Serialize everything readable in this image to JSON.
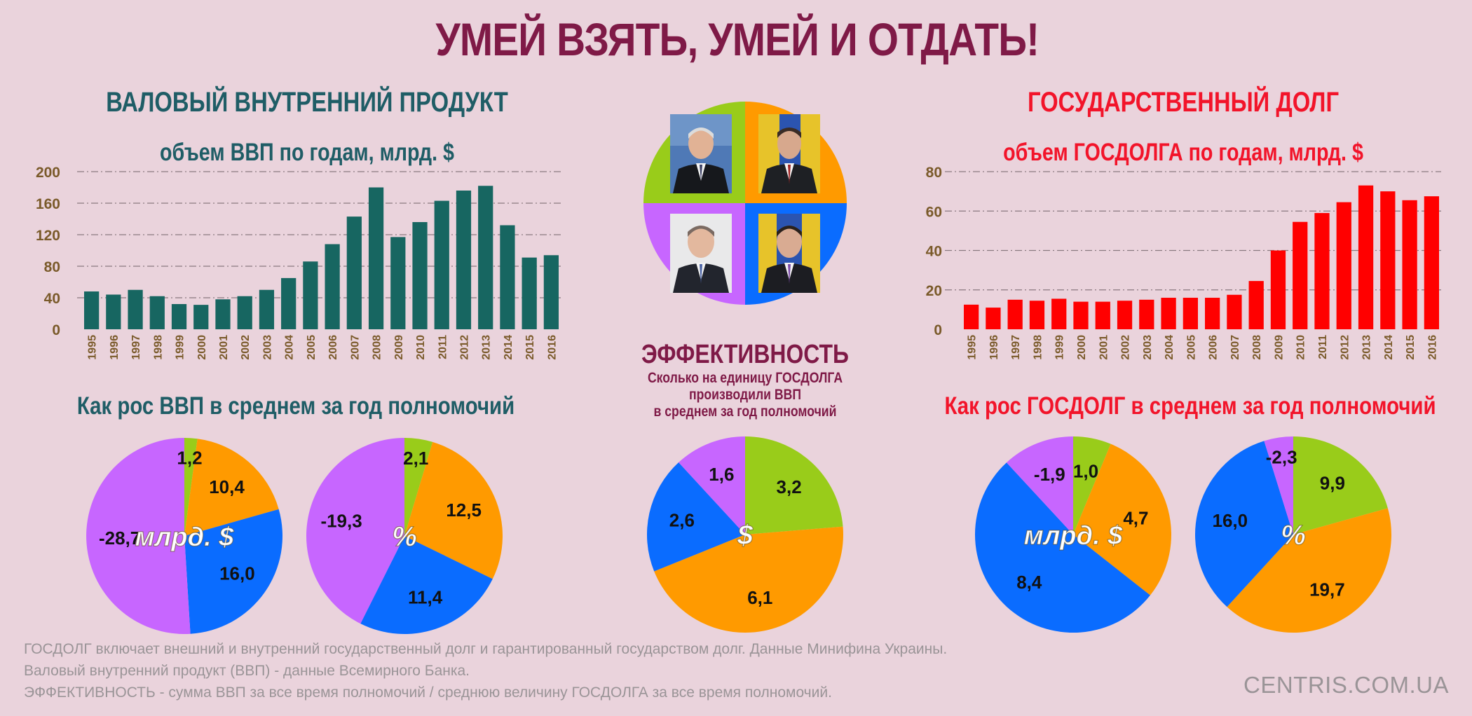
{
  "title": "УМЕЙ ВЗЯТЬ, УМЕЙ И ОТДАТЬ!",
  "gdp_section": {
    "heading": "ВАЛОВЫЙ ВНУТРЕННИЙ ПРОДУКТ",
    "subtitle": "объем ВВП по годам, млрд. $",
    "pies_heading": "Как рос ВВП в среднем за год полномочий"
  },
  "debt_section": {
    "heading": "ГОСУДАРСТВЕННЫЙ ДОЛГ",
    "subtitle": "объем ГОСДОЛГА по годам, млрд. $",
    "pies_heading": "Как рос ГОСДОЛГ в среднем за год полномочий"
  },
  "efficiency": {
    "title": "ЭФФЕКТИВНОСТЬ",
    "line1": "Сколько на единицу ГОСДОЛГА",
    "line2": "производили ВВП",
    "line3": "в среднем за год полномочий"
  },
  "footnotes": [
    "ГОСДОЛГ включает внешний и внутренний государственный долг и гарантированный государством долг. Данные Минифина Украины.",
    "Валовый внутренний продукт (ВВП) - данные Всемирного Банка.",
    "ЭФФЕКТИВНОСТЬ - сумма ВВП за все время полномочий / среднюю величину ГОСДОЛГА за все время полномочий."
  ],
  "brand": "CENTRIS.COM.UA",
  "colors": {
    "background": "#ead3dc",
    "title": "#7f1a47",
    "gdp_text": "#1f5d66",
    "gdp_bar": "#176661",
    "debt_text": "#f2142a",
    "debt_bar": "#ff0000",
    "tick_label": "#7a5a2a",
    "pie_green": "#99cc1a",
    "pie_orange": "#ff9a00",
    "pie_blue": "#0a6cff",
    "pie_violet": "#c766ff"
  },
  "portraits": {
    "icons": [
      "portrait-top-left-icon",
      "portrait-top-right-icon",
      "portrait-bottom-left-icon",
      "portrait-bottom-right-icon"
    ]
  },
  "chart_data": [
    {
      "id": "gdp_bars",
      "type": "bar",
      "categories": [
        "1995",
        "1996",
        "1997",
        "1998",
        "1999",
        "2000",
        "2001",
        "2002",
        "2003",
        "2004",
        "2005",
        "2006",
        "2007",
        "2008",
        "2009",
        "2010",
        "2011",
        "2012",
        "2013",
        "2014",
        "2015",
        "2016"
      ],
      "values": [
        48,
        44,
        50,
        42,
        32,
        31,
        38,
        42,
        50,
        65,
        86,
        108,
        143,
        180,
        117,
        136,
        163,
        176,
        182,
        132,
        91,
        94
      ],
      "title": "объем ВВП по годам, млрд. $",
      "ylim": [
        0,
        200
      ],
      "yticks": [
        0,
        40,
        80,
        120,
        160,
        200
      ],
      "grid": true
    },
    {
      "id": "debt_bars",
      "type": "bar",
      "categories": [
        "1995",
        "1996",
        "1997",
        "1998",
        "1999",
        "2000",
        "2001",
        "2002",
        "2003",
        "2004",
        "2005",
        "2006",
        "2007",
        "2008",
        "2009",
        "2010",
        "2011",
        "2012",
        "2013",
        "2014",
        "2015",
        "2016"
      ],
      "values": [
        12.5,
        11,
        15,
        14.5,
        15.5,
        14,
        14,
        14.5,
        15,
        16,
        16,
        16,
        17.5,
        24.5,
        40,
        54.5,
        59,
        64.5,
        73,
        70,
        65.5,
        67.5
      ],
      "title": "объем ГОСДОЛГА по годам, млрд. $",
      "ylim": [
        0,
        80
      ],
      "yticks": [
        0,
        20,
        40,
        60,
        80
      ],
      "grid": true
    },
    {
      "id": "gdp_pie_bln",
      "type": "pie",
      "center_label": "млрд. $",
      "slices": [
        {
          "label": "1,2",
          "value": 1.2,
          "color": "#99cc1a"
        },
        {
          "label": "10,4",
          "value": 10.4,
          "color": "#ff9a00"
        },
        {
          "label": "16,0",
          "value": 16.0,
          "color": "#0a6cff"
        },
        {
          "label": "-28,7",
          "value": -28.7,
          "color": "#c766ff"
        }
      ]
    },
    {
      "id": "gdp_pie_pct",
      "type": "pie",
      "center_label": "%",
      "slices": [
        {
          "label": "2,1",
          "value": 2.1,
          "color": "#99cc1a"
        },
        {
          "label": "12,5",
          "value": 12.5,
          "color": "#ff9a00"
        },
        {
          "label": "11,4",
          "value": 11.4,
          "color": "#0a6cff"
        },
        {
          "label": "-19,3",
          "value": -19.3,
          "color": "#c766ff"
        }
      ]
    },
    {
      "id": "efficiency_pie",
      "type": "pie",
      "center_label": "$",
      "slices": [
        {
          "label": "3,2",
          "value": 3.2,
          "color": "#99cc1a"
        },
        {
          "label": "6,1",
          "value": 6.1,
          "color": "#ff9a00"
        },
        {
          "label": "2,6",
          "value": 2.6,
          "color": "#0a6cff"
        },
        {
          "label": "1,6",
          "value": 1.6,
          "color": "#c766ff"
        }
      ]
    },
    {
      "id": "debt_pie_bln",
      "type": "pie",
      "center_label": "млрд. $",
      "slices": [
        {
          "label": "1,0",
          "value": 1.0,
          "color": "#99cc1a"
        },
        {
          "label": "4,7",
          "value": 4.7,
          "color": "#ff9a00"
        },
        {
          "label": "8,4",
          "value": 8.4,
          "color": "#0a6cff"
        },
        {
          "label": "-1,9",
          "value": -1.9,
          "color": "#c766ff"
        }
      ]
    },
    {
      "id": "debt_pie_pct",
      "type": "pie",
      "center_label": "%",
      "slices": [
        {
          "label": "9,9",
          "value": 9.9,
          "color": "#99cc1a"
        },
        {
          "label": "19,7",
          "value": 19.7,
          "color": "#ff9a00"
        },
        {
          "label": "16,0",
          "value": 16.0,
          "color": "#0a6cff"
        },
        {
          "label": "-2,3",
          "value": -2.3,
          "color": "#c766ff"
        }
      ]
    }
  ]
}
